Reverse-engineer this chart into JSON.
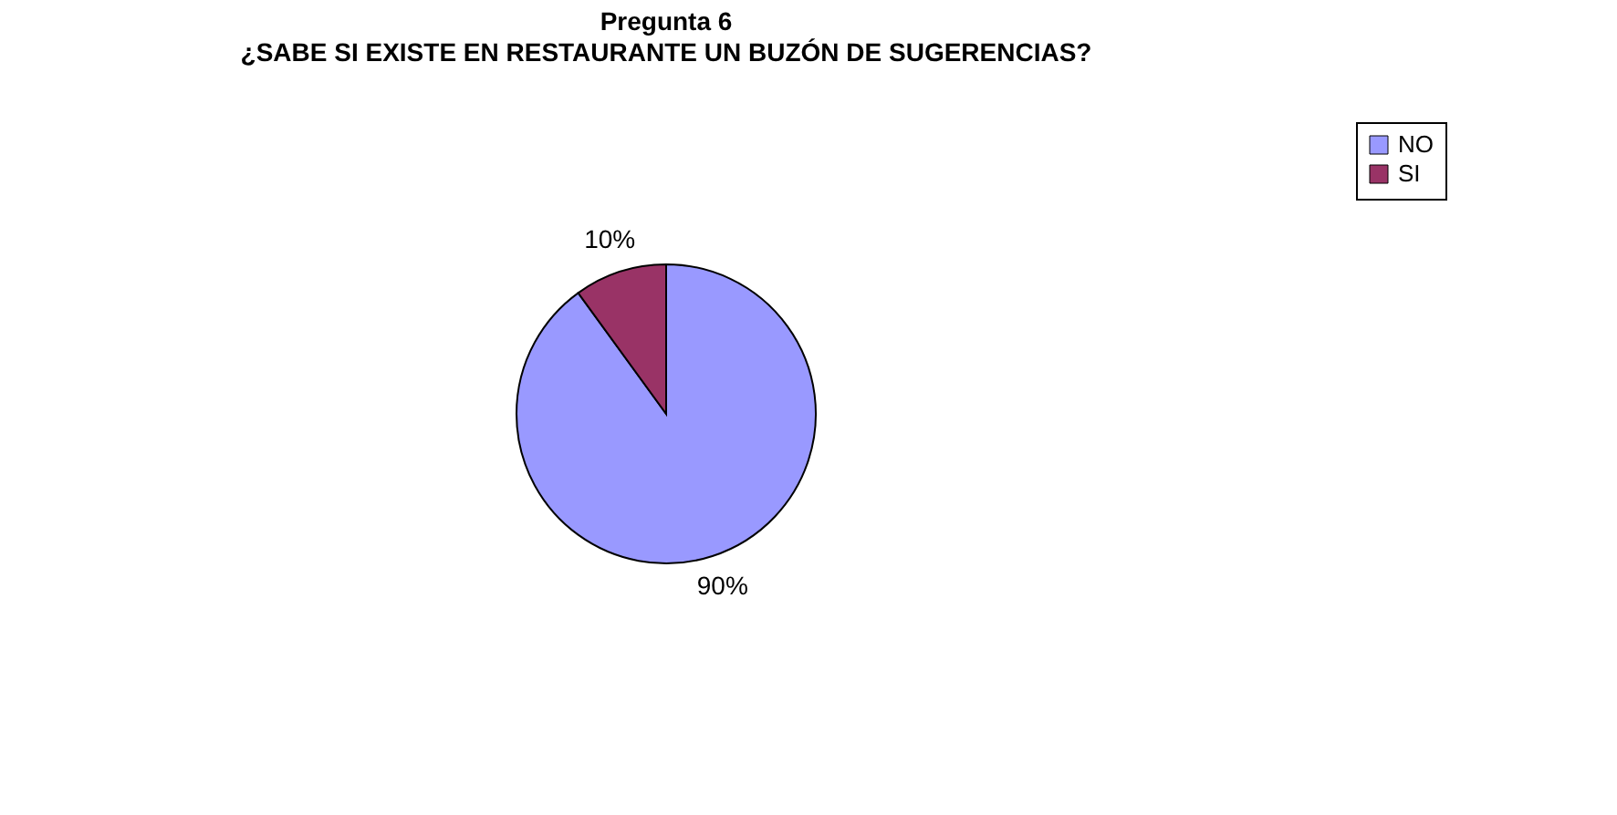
{
  "chart_data": {
    "type": "pie",
    "title": "Pregunta 6",
    "subtitle": "¿SABE SI EXISTE EN RESTAURANTE UN BUZÓN DE SUGERENCIAS?",
    "categories": [
      "NO",
      "SI"
    ],
    "values": [
      90,
      10
    ],
    "colors": [
      "#9999ff",
      "#993366"
    ],
    "value_labels": [
      "90%",
      "10%"
    ],
    "legend": "right"
  }
}
